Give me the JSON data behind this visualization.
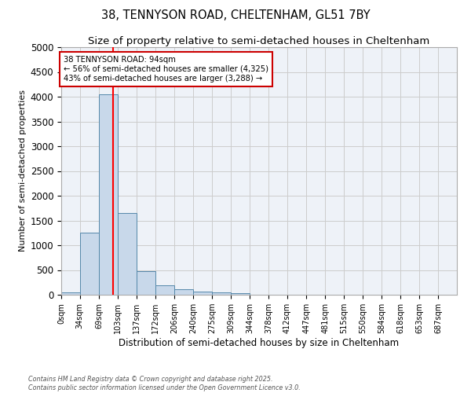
{
  "title": "38, TENNYSON ROAD, CHELTENHAM, GL51 7BY",
  "subtitle": "Size of property relative to semi-detached houses in Cheltenham",
  "xlabel": "Distribution of semi-detached houses by size in Cheltenham",
  "ylabel": "Number of semi-detached properties",
  "bar_edges": [
    0,
    34,
    69,
    103,
    137,
    172,
    206,
    240,
    275,
    309,
    344,
    378,
    412,
    447,
    481,
    515,
    550,
    584,
    618,
    653,
    687,
    721
  ],
  "bar_heights": [
    50,
    1250,
    4050,
    1650,
    480,
    195,
    110,
    65,
    50,
    30,
    0,
    0,
    0,
    0,
    0,
    0,
    0,
    0,
    0,
    0,
    0
  ],
  "bar_color": "#c8d8ea",
  "bar_edge_color": "#5588aa",
  "grid_color": "#cccccc",
  "bg_color": "#eef2f8",
  "red_line_x": 94,
  "annotation_title": "38 TENNYSON ROAD: 94sqm",
  "annotation_line1": "← 56% of semi-detached houses are smaller (4,325)",
  "annotation_line2": "43% of semi-detached houses are larger (3,288) →",
  "annotation_box_color": "#cc0000",
  "ylim": [
    0,
    5000
  ],
  "yticks": [
    0,
    500,
    1000,
    1500,
    2000,
    2500,
    3000,
    3500,
    4000,
    4500,
    5000
  ],
  "footnote1": "Contains HM Land Registry data © Crown copyright and database right 2025.",
  "footnote2": "Contains public sector information licensed under the Open Government Licence v3.0.",
  "title_fontsize": 10.5,
  "subtitle_fontsize": 9.5
}
